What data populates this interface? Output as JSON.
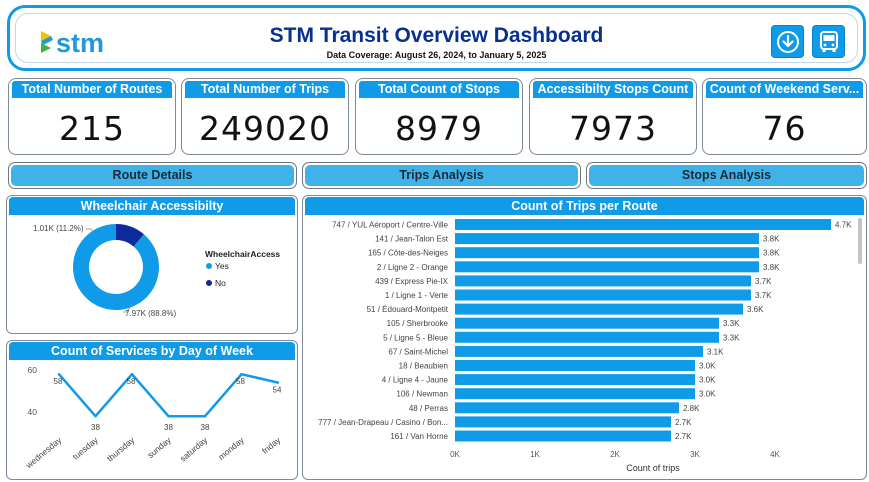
{
  "header": {
    "title": "STM Transit Overview Dashboard",
    "subtitle": "Data Coverage: August 26, 2024, to January 5, 2025",
    "logo_text": "stm",
    "buttons": [
      "download-icon",
      "bus-icon"
    ]
  },
  "kpis": [
    {
      "label": "Total Number of Routes",
      "value": "215"
    },
    {
      "label": "Total Number of Trips",
      "value": "249020"
    },
    {
      "label": "Total Count of Stops",
      "value": "8979"
    },
    {
      "label": "Accessibilty Stops Count",
      "value": "7973"
    },
    {
      "label": "Count of Weekend Serv...",
      "value": "76"
    }
  ],
  "nav": {
    "route_details": "Route Details",
    "trips_analysis": "Trips Analysis",
    "stops_analysis": "Stops Analysis"
  },
  "colors": {
    "accent": "#0f9be8",
    "dark_blue": "#07318f",
    "nav_button": "#3fb2e8",
    "bar": "#0f9be8",
    "donut_yes": "#0f9be8",
    "donut_no": "#0d2a9c"
  },
  "chart_data": [
    {
      "type": "pie",
      "title": "Wheelchair Accessibilty",
      "legend_title": "WheelchairAccess",
      "legend_position": "right",
      "categories": [
        "Yes",
        "No"
      ],
      "values": [
        7970,
        1010
      ],
      "data_labels": [
        "7.97K (88.8%)",
        "1.01K (11.2%)"
      ]
    },
    {
      "type": "line",
      "title": "Count of Services by Day of Week",
      "categories": [
        "wednesday",
        "tuesday",
        "thursday",
        "sunday",
        "saturday",
        "monday",
        "friday"
      ],
      "values": [
        58,
        38,
        58,
        38,
        38,
        58,
        54
      ],
      "ylim": [
        40,
        60
      ],
      "yticks": [
        40,
        60
      ],
      "grid": false
    },
    {
      "type": "bar",
      "orientation": "horizontal",
      "title": "Count of Trips per Route",
      "xlabel": "Count of trips",
      "xlim": [
        0,
        4000
      ],
      "xticks": [
        "0K",
        "1K",
        "2K",
        "3K",
        "4K"
      ],
      "categories": [
        "747 / YUL Aéroport / Centre-Ville",
        "141 / Jean-Talon Est",
        "165 / Côte-des-Neiges",
        "2 / Ligne 2 - Orange",
        "439 / Express Pie-IX",
        "1 / Ligne 1 - Verte",
        "51 / Édouard-Montpetit",
        "105 / Sherbrooke",
        "5 / Ligne 5 - Bleue",
        "67 / Saint-Michel",
        "18 / Beaubien",
        "4 / Ligne 4 - Jaune",
        "106 / Newman",
        "48 / Perras",
        "777 / Jean-Drapeau / Casino / Bon...",
        "161 / Van Horne"
      ],
      "values": [
        4700,
        3800,
        3800,
        3800,
        3700,
        3700,
        3600,
        3300,
        3300,
        3100,
        3000,
        3000,
        3000,
        2800,
        2700,
        2700
      ],
      "data_labels": [
        "4.7K",
        "3.8K",
        "3.8K",
        "3.8K",
        "3.7K",
        "3.7K",
        "3.6K",
        "3.3K",
        "3.3K",
        "3.1K",
        "3.0K",
        "3.0K",
        "3.0K",
        "2.8K",
        "2.7K",
        "2.7K"
      ]
    }
  ]
}
